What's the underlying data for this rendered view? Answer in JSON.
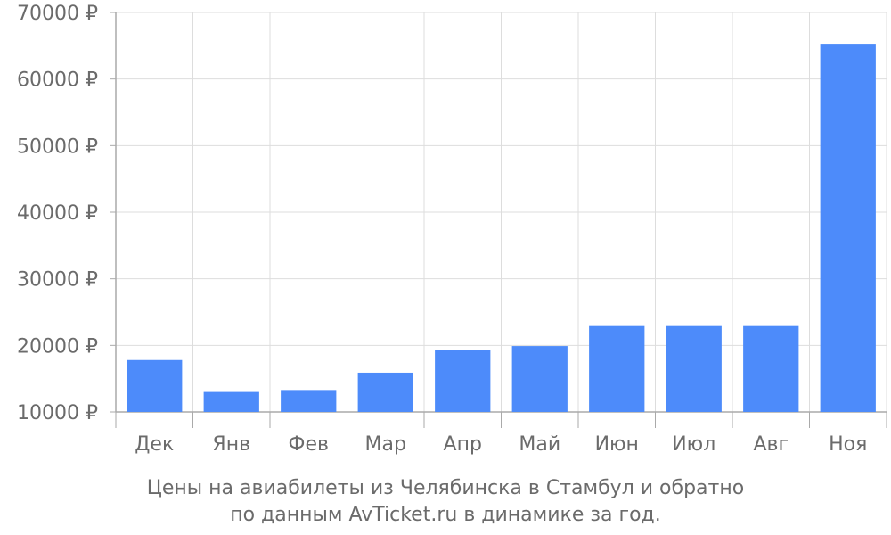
{
  "chart_data": {
    "type": "bar",
    "categories": [
      "Дек",
      "Янв",
      "Фев",
      "Мар",
      "Апр",
      "Май",
      "Июн",
      "Июл",
      "Авг",
      "Ноя"
    ],
    "series": [
      {
        "values": [
          17800,
          13000,
          13300,
          15900,
          19300,
          19900,
          22900,
          22900,
          22900,
          65300
        ]
      }
    ],
    "ylim": [
      10000,
      70000
    ],
    "y_ticks": [
      10000,
      20000,
      30000,
      40000,
      50000,
      60000,
      70000
    ],
    "y_tick_labels": [
      "10000 ₽",
      "20000 ₽",
      "30000 ₽",
      "40000 ₽",
      "50000 ₽",
      "60000 ₽",
      "70000 ₽"
    ],
    "grid": true,
    "legend": "none",
    "colors": {
      "bar": "#4d8bfa",
      "grid": "#dddddd",
      "axis": "#aaaaaa",
      "text": "#6b6b6b"
    }
  },
  "caption": {
    "line1": "Цены на авиабилеты из Челябинска в Стамбул и обратно",
    "line2": "по данным AvTicket.ru в динамике за год."
  }
}
